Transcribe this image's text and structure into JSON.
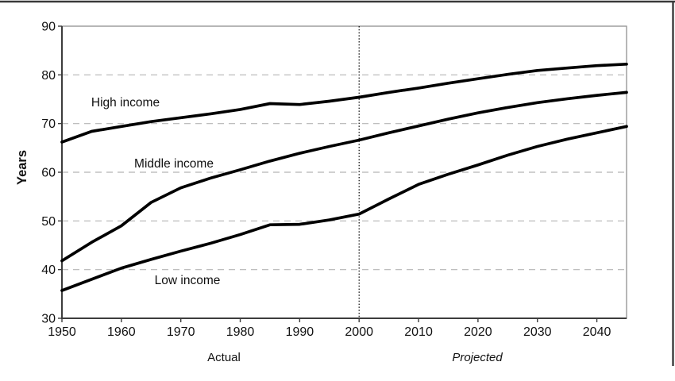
{
  "chart_data": {
    "type": "line",
    "title": "",
    "xlabel": "",
    "ylabel": "Years",
    "xlim": [
      1950,
      2045
    ],
    "ylim": [
      30,
      90
    ],
    "x_ticks": [
      1950,
      1960,
      1970,
      1980,
      1990,
      2000,
      2010,
      2020,
      2030,
      2040
    ],
    "y_ticks": [
      30,
      40,
      50,
      60,
      70,
      80,
      90
    ],
    "grid": "horizontal-dashed",
    "legend_position": "inline-labels-on-plot",
    "divider_year": 2000,
    "period_labels": {
      "actual": "Actual",
      "projected": "Projected"
    },
    "x": [
      1950,
      1955,
      1960,
      1965,
      1970,
      1975,
      1980,
      1985,
      1990,
      1995,
      2000,
      2005,
      2010,
      2015,
      2020,
      2025,
      2030,
      2035,
      2040,
      2045
    ],
    "series": [
      {
        "name": "High income",
        "values": [
          66.2,
          68.4,
          69.4,
          70.4,
          71.2,
          72.0,
          72.9,
          74.1,
          73.9,
          74.6,
          75.4,
          76.4,
          77.3,
          78.3,
          79.2,
          80.1,
          80.9,
          81.4,
          81.9,
          82.2
        ]
      },
      {
        "name": "Middle income",
        "values": [
          41.8,
          45.6,
          49.0,
          53.8,
          56.8,
          58.8,
          60.5,
          62.3,
          63.9,
          65.3,
          66.6,
          68.1,
          69.5,
          70.9,
          72.2,
          73.3,
          74.3,
          75.1,
          75.8,
          76.4
        ]
      },
      {
        "name": "Low income",
        "values": [
          35.7,
          38.0,
          40.3,
          42.1,
          43.8,
          45.4,
          47.2,
          49.2,
          49.3,
          50.2,
          51.4,
          54.5,
          57.5,
          59.6,
          61.5,
          63.5,
          65.3,
          66.8,
          68.1,
          69.4
        ]
      }
    ],
    "colors": {
      "line": "#000000",
      "grid": "#b5b5b5",
      "axis": "#3d3d3d",
      "plot_border": "#909090",
      "divider": "#000000",
      "text": "#111111",
      "frame": "#3a3a3a",
      "background": "#ffffff"
    }
  }
}
